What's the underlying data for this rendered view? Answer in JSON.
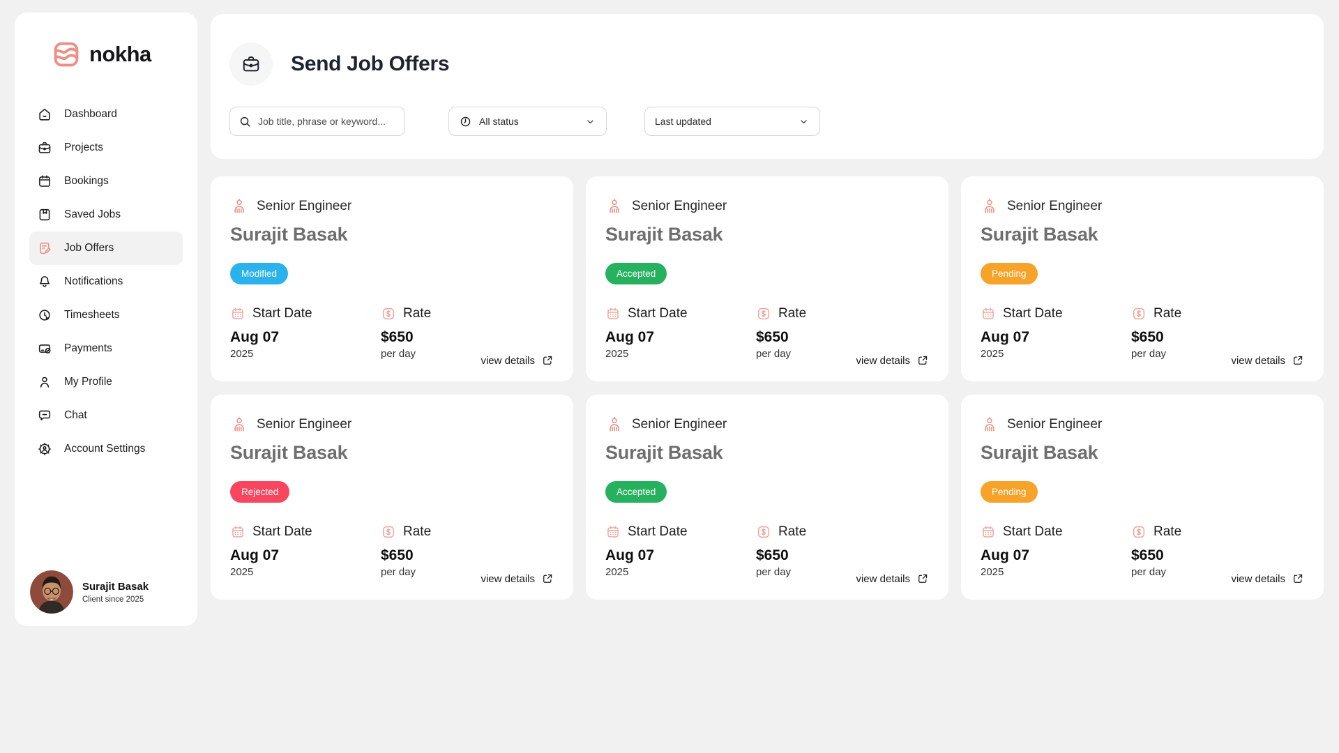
{
  "brand": {
    "name": "nokha",
    "accent_color": "#ef8e84"
  },
  "sidebar": {
    "items": [
      {
        "label": "Dashboard",
        "icon": "home-icon",
        "active": false
      },
      {
        "label": "Projects",
        "icon": "briefcase-icon",
        "active": false
      },
      {
        "label": "Bookings",
        "icon": "calendar-icon",
        "active": false
      },
      {
        "label": "Saved Jobs",
        "icon": "bookmark-icon",
        "active": false
      },
      {
        "label": "Job Offers",
        "icon": "job-offers-icon",
        "active": true
      },
      {
        "label": "Notifications",
        "icon": "bell-icon",
        "active": false
      },
      {
        "label": "Timesheets",
        "icon": "timer-icon",
        "active": false
      },
      {
        "label": "Payments",
        "icon": "payment-card-icon",
        "active": false
      },
      {
        "label": "My Profile",
        "icon": "person-icon",
        "active": false
      },
      {
        "label": "Chat",
        "icon": "chat-icon",
        "active": false
      },
      {
        "label": "Account Settings",
        "icon": "gear-icon",
        "active": false
      }
    ],
    "profile": {
      "name": "Surajit Basak",
      "subtitle": "Client since 2025"
    }
  },
  "header": {
    "title": "Send Job Offers",
    "search_placeholder": "Job title, phrase or keyword...",
    "status_filter_value": "All status",
    "sort_filter_value": "Last updated"
  },
  "card_labels": {
    "start_date": "Start Date",
    "rate": "Rate",
    "view_details": "view details"
  },
  "status_colors": {
    "Modified": "#2ab2ec",
    "Accepted": "#26b15e",
    "Pending": "#f7a228",
    "Rejected": "#f8465f"
  },
  "cards": [
    {
      "role": "Senior Engineer",
      "name": "Surajit Basak",
      "status": "Modified",
      "start_date": "Aug 07",
      "start_year": "2025",
      "rate": "$650",
      "rate_unit": "per day"
    },
    {
      "role": "Senior Engineer",
      "name": "Surajit Basak",
      "status": "Accepted",
      "start_date": "Aug 07",
      "start_year": "2025",
      "rate": "$650",
      "rate_unit": "per day"
    },
    {
      "role": "Senior Engineer",
      "name": "Surajit Basak",
      "status": "Pending",
      "start_date": "Aug 07",
      "start_year": "2025",
      "rate": "$650",
      "rate_unit": "per day"
    },
    {
      "role": "Senior Engineer",
      "name": "Surajit Basak",
      "status": "Rejected",
      "start_date": "Aug 07",
      "start_year": "2025",
      "rate": "$650",
      "rate_unit": "per day"
    },
    {
      "role": "Senior Engineer",
      "name": "Surajit Basak",
      "status": "Accepted",
      "start_date": "Aug 07",
      "start_year": "2025",
      "rate": "$650",
      "rate_unit": "per day"
    },
    {
      "role": "Senior Engineer",
      "name": "Surajit Basak",
      "status": "Pending",
      "start_date": "Aug 07",
      "start_year": "2025",
      "rate": "$650",
      "rate_unit": "per day"
    }
  ]
}
